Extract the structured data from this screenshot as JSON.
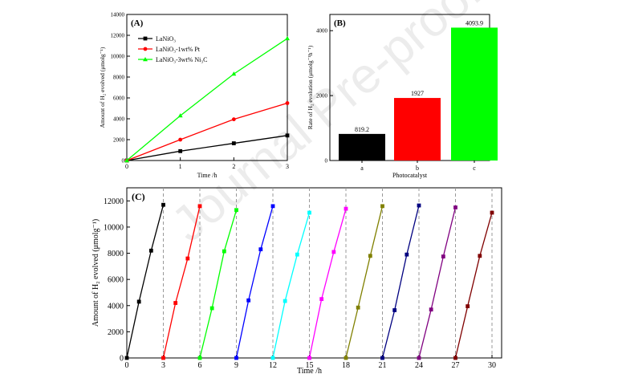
{
  "watermark": "Journal Pre-proof",
  "chart_data": [
    {
      "panel": "(A)",
      "type": "line",
      "xlabel": "Time /h",
      "ylabel": "Amount of H₂ evolved (μmolg⁻¹)",
      "xlim": [
        0,
        3
      ],
      "ylim": [
        0,
        14000
      ],
      "xticks": [
        0,
        1,
        2,
        3
      ],
      "yticks": [
        0,
        2000,
        4000,
        6000,
        8000,
        10000,
        12000,
        14000
      ],
      "legend_position": "top-left",
      "x": [
        0,
        1,
        2,
        3
      ],
      "series": [
        {
          "name": "LaNiO₃",
          "marker": "square",
          "color": "#000000",
          "values": [
            0,
            900,
            1650,
            2400
          ]
        },
        {
          "name": "LaNiO₃-1wt% Pt",
          "marker": "circle",
          "color": "#ff0000",
          "values": [
            0,
            2000,
            3950,
            5500
          ]
        },
        {
          "name": "LaNiO₃-3wt% Ni₃C",
          "marker": "triangle",
          "color": "#00ff00",
          "values": [
            0,
            4300,
            8300,
            11700
          ]
        }
      ]
    },
    {
      "panel": "(B)",
      "type": "bar",
      "xlabel": "Photocatalyst",
      "ylabel": "Rate of H₂ evolution (μmolg⁻¹h⁻¹)",
      "ylim": [
        0,
        4500
      ],
      "yticks": [
        0,
        2000,
        4000
      ],
      "categories": [
        "a",
        "b",
        "c"
      ],
      "values": [
        819.2,
        1927,
        4093.9
      ],
      "value_labels": [
        "819.2",
        "1927",
        "4093.9"
      ],
      "colors": [
        "#000000",
        "#ff0000",
        "#00ff00"
      ]
    },
    {
      "panel": "(C)",
      "type": "line",
      "xlabel": "Time /h",
      "ylabel": "Amount of H₂ evolved (μmolg⁻¹)",
      "xlim": [
        0,
        30
      ],
      "ylim": [
        0,
        13000
      ],
      "xticks": [
        0,
        3,
        6,
        9,
        12,
        15,
        18,
        21,
        24,
        27,
        30
      ],
      "yticks": [
        0,
        2000,
        4000,
        6000,
        8000,
        10000,
        12000
      ],
      "cycle_dividers": [
        3,
        6,
        9,
        12,
        15,
        18,
        21,
        24,
        27,
        30
      ],
      "series": [
        {
          "color": "#000000",
          "x": [
            0,
            1,
            2,
            3
          ],
          "values": [
            0,
            4300,
            8200,
            11700
          ]
        },
        {
          "color": "#ff0000",
          "x": [
            3,
            4,
            5,
            6
          ],
          "values": [
            0,
            4200,
            7600,
            11600
          ]
        },
        {
          "color": "#00ff00",
          "x": [
            6,
            7,
            8,
            9
          ],
          "values": [
            0,
            3800,
            8150,
            11300
          ]
        },
        {
          "color": "#0000ff",
          "x": [
            9,
            10,
            11,
            12
          ],
          "values": [
            0,
            4400,
            8300,
            11600
          ]
        },
        {
          "color": "#00ffff",
          "x": [
            12,
            13,
            14,
            15
          ],
          "values": [
            0,
            4350,
            7900,
            11100
          ]
        },
        {
          "color": "#ff00ff",
          "x": [
            15,
            16,
            17,
            18
          ],
          "values": [
            0,
            4500,
            8100,
            11400
          ]
        },
        {
          "color": "#808000",
          "x": [
            18,
            19,
            20,
            21
          ],
          "values": [
            0,
            3850,
            7800,
            11600
          ]
        },
        {
          "color": "#000080",
          "x": [
            21,
            22,
            23,
            24
          ],
          "values": [
            0,
            3650,
            7900,
            11650
          ]
        },
        {
          "color": "#800080",
          "x": [
            24,
            25,
            26,
            27
          ],
          "values": [
            0,
            3700,
            7750,
            11500
          ]
        },
        {
          "color": "#800000",
          "x": [
            27,
            28,
            29,
            30
          ],
          "values": [
            0,
            3950,
            7800,
            11100
          ]
        }
      ]
    }
  ]
}
